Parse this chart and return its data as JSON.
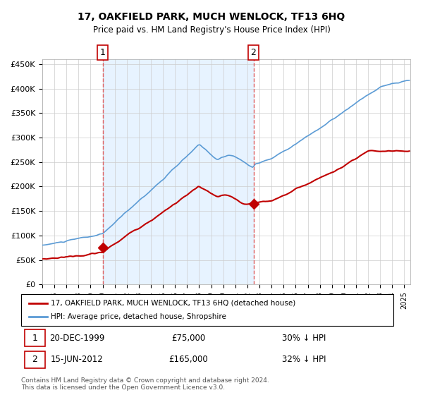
{
  "title": "17, OAKFIELD PARK, MUCH WENLOCK, TF13 6HQ",
  "subtitle": "Price paid vs. HM Land Registry's House Price Index (HPI)",
  "legend_line1": "17, OAKFIELD PARK, MUCH WENLOCK, TF13 6HQ (detached house)",
  "legend_line2": "HPI: Average price, detached house, Shropshire",
  "footnote": "Contains HM Land Registry data © Crown copyright and database right 2024.\nThis data is licensed under the Open Government Licence v3.0.",
  "sale1_date": "20-DEC-1999",
  "sale1_price": "£75,000",
  "sale1_note": "30% ↓ HPI",
  "sale2_date": "15-JUN-2012",
  "sale2_price": "£165,000",
  "sale2_note": "32% ↓ HPI",
  "sale1_x": 2000.0,
  "sale1_y": 75000,
  "sale2_x": 2012.5,
  "sale2_y": 165000,
  "hpi_color": "#5b9bd5",
  "price_color": "#c00000",
  "vline_color": "#e06060",
  "bg_shade_color": "#ddeeff",
  "grid_color": "#cccccc",
  "ylim": [
    0,
    460000
  ],
  "xlim_start": 1995.0,
  "xlim_end": 2025.5,
  "yticks": [
    0,
    50000,
    100000,
    150000,
    200000,
    250000,
    300000,
    350000,
    400000,
    450000
  ]
}
